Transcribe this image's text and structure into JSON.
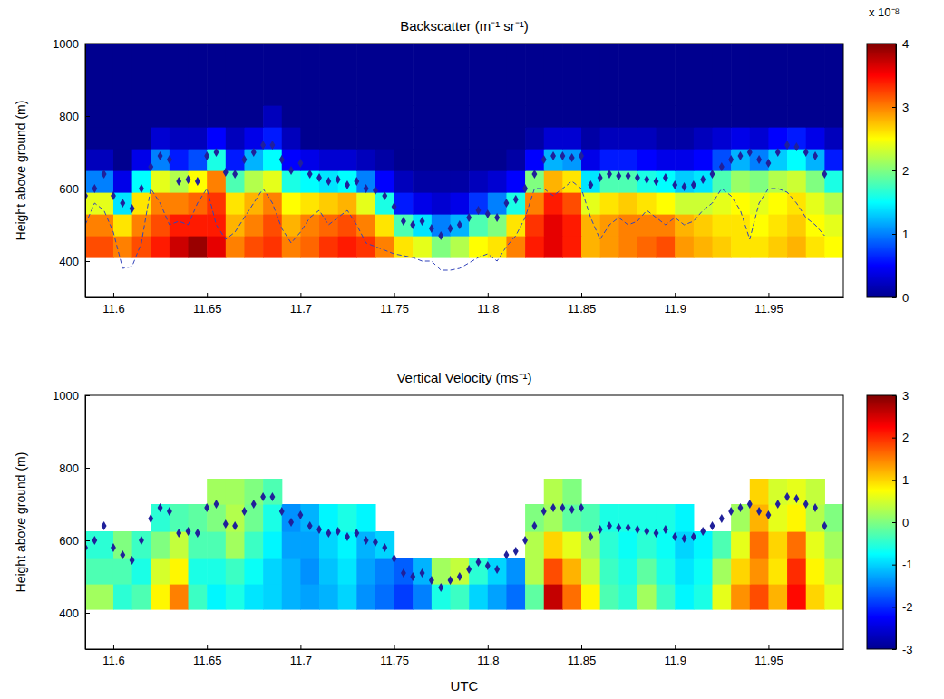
{
  "chart_data": [
    {
      "type": "heatmap",
      "title": "Backscatter (m⁻¹ sr⁻¹)",
      "ylabel": "Height above ground (m)",
      "xlim": [
        11.585,
        11.99
      ],
      "ylim": [
        300,
        1000
      ],
      "xticks": [
        11.6,
        11.65,
        11.7,
        11.75,
        11.8,
        11.85,
        11.9,
        11.95
      ],
      "yticks": [
        400,
        600,
        800,
        1000
      ],
      "x_edges": [
        11.585,
        11.6,
        11.61,
        11.62,
        11.63,
        11.64,
        11.65,
        11.66,
        11.67,
        11.68,
        11.69,
        11.7,
        11.71,
        11.72,
        11.73,
        11.74,
        11.75,
        11.76,
        11.77,
        11.78,
        11.79,
        11.8,
        11.81,
        11.82,
        11.83,
        11.84,
        11.85,
        11.86,
        11.87,
        11.88,
        11.89,
        11.9,
        11.91,
        11.92,
        11.93,
        11.94,
        11.95,
        11.96,
        11.97,
        11.98,
        11.99
      ],
      "y_edges": [
        410,
        470,
        530,
        590,
        650,
        710,
        770,
        830,
        1000
      ],
      "cells": [
        [
          3.2,
          3.0,
          3.2,
          3.4,
          3.7,
          3.9,
          3.6,
          3.0,
          3.2,
          3.3,
          3.0,
          3.1,
          3.3,
          3.4,
          3.3,
          3.0,
          2.6,
          2.4,
          2.0,
          2.2,
          2.5,
          2.6,
          3.0,
          3.4,
          3.6,
          3.4,
          2.8,
          2.9,
          3.0,
          3.1,
          3.2,
          2.9,
          2.8,
          2.7,
          2.6,
          2.6,
          2.7,
          2.8,
          2.6,
          2.5
        ],
        [
          3.0,
          2.6,
          3.0,
          3.2,
          3.4,
          3.4,
          3.4,
          2.8,
          3.0,
          3.2,
          2.8,
          3.0,
          3.1,
          3.2,
          3.0,
          2.6,
          1.8,
          1.4,
          1.0,
          1.2,
          1.8,
          2.0,
          2.6,
          3.3,
          3.6,
          3.4,
          2.8,
          2.9,
          3.0,
          3.0,
          3.0,
          2.8,
          2.7,
          2.6,
          2.6,
          2.5,
          2.6,
          2.7,
          2.5,
          2.4
        ],
        [
          2.4,
          1.4,
          2.6,
          3.0,
          3.0,
          3.1,
          3.3,
          2.6,
          2.8,
          3.0,
          2.5,
          2.6,
          2.7,
          2.8,
          2.4,
          1.6,
          0.6,
          0.4,
          0.3,
          0.4,
          0.7,
          1.0,
          1.6,
          3.0,
          3.4,
          3.2,
          2.4,
          2.6,
          2.7,
          2.6,
          2.5,
          2.3,
          2.3,
          2.4,
          2.5,
          2.4,
          2.5,
          2.6,
          2.4,
          2.2
        ],
        [
          1.0,
          0.4,
          1.5,
          2.4,
          2.2,
          2.5,
          3.0,
          1.8,
          2.2,
          2.4,
          1.6,
          1.5,
          1.4,
          1.5,
          1.0,
          0.5,
          0.2,
          0.1,
          0.1,
          0.1,
          0.2,
          0.3,
          0.5,
          2.0,
          2.8,
          2.6,
          1.4,
          1.8,
          1.8,
          1.6,
          1.5,
          1.3,
          1.4,
          1.8,
          2.1,
          2.0,
          2.2,
          2.3,
          2.0,
          1.6
        ],
        [
          0.2,
          0,
          0.4,
          1.0,
          0.6,
          0.8,
          1.6,
          0.6,
          1.2,
          1.5,
          0.5,
          0.4,
          0.3,
          0.3,
          0.2,
          0.1,
          0,
          0,
          0,
          0,
          0,
          0,
          0.1,
          0.5,
          1.2,
          1.1,
          0.4,
          0.6,
          0.6,
          0.5,
          0.4,
          0.4,
          0.5,
          0.8,
          1.2,
          1.0,
          1.3,
          1.5,
          1.2,
          0.6
        ],
        [
          0,
          0,
          0,
          0.3,
          0.2,
          0.2,
          0.5,
          0.2,
          0.4,
          0.6,
          0.2,
          0,
          0,
          0,
          0,
          0,
          0,
          0,
          0,
          0,
          0,
          0,
          0,
          0.1,
          0.3,
          0.3,
          0.1,
          0.2,
          0.2,
          0.2,
          0.1,
          0.1,
          0.2,
          0.3,
          0.4,
          0.3,
          0.5,
          0.6,
          0.4,
          0.2
        ],
        [
          0,
          0,
          0,
          0,
          0,
          0,
          0,
          0,
          0,
          0.2,
          0,
          0,
          0,
          0,
          0,
          0,
          0,
          0,
          0,
          0,
          0,
          0,
          0,
          0,
          0,
          0,
          0,
          0,
          0,
          0,
          0,
          0,
          0,
          0,
          0,
          0,
          0,
          0,
          0,
          0
        ],
        [
          0,
          0,
          0,
          0,
          0,
          0,
          0,
          0,
          0,
          0,
          0,
          0,
          0,
          0,
          0,
          0,
          0,
          0,
          0,
          0,
          0,
          0,
          0,
          0,
          0,
          0,
          0,
          0,
          0,
          0,
          0,
          0,
          0,
          0,
          0,
          0,
          0,
          0,
          0,
          0
        ]
      ],
      "clim": [
        0,
        4
      ],
      "cticks": [
        0,
        1,
        2,
        3,
        4
      ],
      "clabel": "x 10⁻⁸",
      "x": [
        11.585,
        11.59,
        11.595,
        11.6,
        11.605,
        11.61,
        11.615,
        11.62,
        11.625,
        11.63,
        11.635,
        11.64,
        11.645,
        11.65,
        11.655,
        11.66,
        11.665,
        11.67,
        11.675,
        11.68,
        11.685,
        11.69,
        11.695,
        11.7,
        11.705,
        11.71,
        11.715,
        11.72,
        11.725,
        11.73,
        11.735,
        11.74,
        11.745,
        11.75,
        11.755,
        11.76,
        11.765,
        11.77,
        11.775,
        11.78,
        11.785,
        11.79,
        11.795,
        11.8,
        11.805,
        11.81,
        11.815,
        11.82,
        11.825,
        11.83,
        11.835,
        11.84,
        11.845,
        11.85,
        11.855,
        11.86,
        11.865,
        11.87,
        11.875,
        11.88,
        11.885,
        11.89,
        11.895,
        11.9,
        11.905,
        11.91,
        11.915,
        11.92,
        11.925,
        11.93,
        11.935,
        11.94,
        11.945,
        11.95,
        11.955,
        11.96,
        11.965,
        11.97,
        11.975,
        11.98
      ],
      "series": [
        {
          "type": "scatter",
          "marker": "diamond",
          "color": "#20209a",
          "values": [
            580,
            600,
            640,
            580,
            560,
            545,
            600,
            660,
            690,
            680,
            620,
            625,
            620,
            690,
            700,
            645,
            640,
            680,
            700,
            720,
            720,
            680,
            650,
            670,
            640,
            630,
            620,
            625,
            610,
            620,
            600,
            595,
            580,
            550,
            510,
            500,
            510,
            490,
            470,
            490,
            500,
            520,
            540,
            530,
            520,
            560,
            570,
            600,
            640,
            680,
            690,
            690,
            685,
            690,
            610,
            630,
            640,
            635,
            635,
            630,
            625,
            620,
            630,
            610,
            605,
            610,
            625,
            640,
            660,
            680,
            690,
            700,
            680,
            670,
            700,
            720,
            715,
            700,
            690,
            640
          ]
        },
        {
          "type": "line",
          "line_style": "dashed",
          "color": "#3344bb",
          "values": [
            500,
            560,
            540,
            480,
            380,
            385,
            450,
            600,
            560,
            500,
            510,
            500,
            560,
            600,
            500,
            460,
            480,
            520,
            560,
            600,
            560,
            490,
            450,
            480,
            520,
            540,
            500,
            520,
            540,
            500,
            450,
            440,
            430,
            420,
            415,
            410,
            400,
            400,
            375,
            375,
            380,
            395,
            410,
            420,
            400,
            440,
            470,
            520,
            600,
            600,
            580,
            600,
            620,
            600,
            520,
            460,
            500,
            520,
            500,
            510,
            540,
            520,
            500,
            520,
            500,
            510,
            540,
            560,
            600,
            580,
            540,
            460,
            560,
            600,
            600,
            590,
            560,
            520,
            500,
            470
          ]
        }
      ]
    },
    {
      "type": "heatmap",
      "title": "Vertical Velocity (ms⁻¹)",
      "xlabel": "UTC",
      "ylabel": "Height above ground (m)",
      "xlim": [
        11.585,
        11.99
      ],
      "ylim": [
        300,
        1000
      ],
      "xticks": [
        11.6,
        11.65,
        11.7,
        11.75,
        11.8,
        11.85,
        11.9,
        11.95
      ],
      "yticks": [
        400,
        600,
        800,
        1000
      ],
      "x_edges": [
        11.585,
        11.6,
        11.61,
        11.62,
        11.63,
        11.64,
        11.65,
        11.66,
        11.67,
        11.68,
        11.69,
        11.7,
        11.71,
        11.72,
        11.73,
        11.74,
        11.75,
        11.76,
        11.77,
        11.78,
        11.79,
        11.8,
        11.81,
        11.82,
        11.83,
        11.84,
        11.85,
        11.86,
        11.87,
        11.88,
        11.89,
        11.9,
        11.91,
        11.92,
        11.93,
        11.94,
        11.95,
        11.96,
        11.97,
        11.98,
        11.99
      ],
      "y_edges": [
        410,
        480,
        550,
        625,
        700,
        770
      ],
      "cells": [
        [
          0.2,
          -0.5,
          -0.3,
          0.8,
          1.5,
          -0.4,
          -0.8,
          -0.6,
          -0.9,
          -1.0,
          -1.2,
          -1.3,
          -1.2,
          -1.0,
          -1.4,
          -1.6,
          -1.9,
          -1.5,
          -0.6,
          -0.4,
          -1.0,
          -1.3,
          -1.6,
          -0.2,
          2.6,
          1.6,
          0.8,
          -0.3,
          -0.5,
          0.2,
          -0.4,
          -0.8,
          -0.6,
          0.6,
          1.4,
          1.8,
          1.2,
          2.2,
          1.0,
          0.6
        ],
        [
          -0.3,
          -0.3,
          -0.6,
          0.5,
          0.8,
          -0.6,
          -0.6,
          -0.4,
          -0.7,
          -1.0,
          -1.2,
          -1.4,
          -1.1,
          -0.9,
          -1.3,
          -1.5,
          -1.7,
          -1.2,
          0.2,
          0.4,
          -0.5,
          -1.0,
          -1.4,
          0.3,
          1.8,
          1.2,
          0.4,
          -0.4,
          -0.6,
          -0.2,
          -0.6,
          -0.9,
          -0.7,
          0.2,
          1.0,
          1.4,
          0.9,
          2.0,
          0.8,
          0.4
        ],
        [
          -0.5,
          0,
          -0.4,
          0,
          0.4,
          -0.3,
          -0.3,
          0.2,
          -0.4,
          -0.8,
          -1.3,
          -1.3,
          -1.0,
          -0.8,
          -1.2,
          -1.0,
          null,
          null,
          null,
          null,
          null,
          null,
          null,
          0.3,
          1.0,
          0.6,
          0.2,
          -0.5,
          -0.7,
          -0.5,
          -0.7,
          -1.0,
          -0.8,
          -0.3,
          0.6,
          1.6,
          1.0,
          1.6,
          0.6,
          0.2
        ],
        [
          null,
          null,
          null,
          -0.5,
          -0.3,
          -0.2,
          0,
          0.3,
          -0.1,
          -0.6,
          -1.4,
          -1.2,
          -0.8,
          -0.6,
          -0.8,
          null,
          null,
          null,
          null,
          null,
          null,
          null,
          null,
          0.0,
          0.2,
          -0.2,
          -0.3,
          -0.6,
          -0.6,
          -0.6,
          -0.6,
          -0.8,
          null,
          null,
          0.2,
          1.2,
          0.6,
          0.8,
          0.3,
          0.0
        ],
        [
          null,
          null,
          null,
          null,
          null,
          null,
          0.2,
          0.2,
          0,
          -0.3,
          null,
          null,
          null,
          null,
          null,
          null,
          null,
          null,
          null,
          null,
          null,
          null,
          null,
          null,
          0.3,
          0,
          null,
          null,
          null,
          null,
          null,
          null,
          null,
          null,
          null,
          1.0,
          0.5,
          0.6,
          0.4,
          null
        ]
      ],
      "clim": [
        -3,
        3
      ],
      "cticks": [
        -3,
        -2,
        -1,
        0,
        1,
        2,
        3
      ],
      "x": [
        11.585,
        11.59,
        11.595,
        11.6,
        11.605,
        11.61,
        11.615,
        11.62,
        11.625,
        11.63,
        11.635,
        11.64,
        11.645,
        11.65,
        11.655,
        11.66,
        11.665,
        11.67,
        11.675,
        11.68,
        11.685,
        11.69,
        11.695,
        11.7,
        11.705,
        11.71,
        11.715,
        11.72,
        11.725,
        11.73,
        11.735,
        11.74,
        11.745,
        11.75,
        11.755,
        11.76,
        11.765,
        11.77,
        11.775,
        11.78,
        11.785,
        11.79,
        11.795,
        11.8,
        11.805,
        11.81,
        11.815,
        11.82,
        11.825,
        11.83,
        11.835,
        11.84,
        11.845,
        11.85,
        11.855,
        11.86,
        11.865,
        11.87,
        11.875,
        11.88,
        11.885,
        11.89,
        11.895,
        11.9,
        11.905,
        11.91,
        11.915,
        11.92,
        11.925,
        11.93,
        11.935,
        11.94,
        11.945,
        11.95,
        11.955,
        11.96,
        11.965,
        11.97,
        11.975,
        11.98
      ],
      "series": [
        {
          "type": "scatter",
          "marker": "diamond",
          "color": "#20209a",
          "values": [
            580,
            600,
            640,
            580,
            560,
            545,
            600,
            660,
            690,
            680,
            620,
            625,
            620,
            690,
            700,
            645,
            640,
            680,
            700,
            720,
            720,
            680,
            650,
            670,
            640,
            630,
            620,
            625,
            610,
            620,
            600,
            595,
            580,
            550,
            510,
            500,
            510,
            490,
            470,
            490,
            500,
            520,
            540,
            530,
            520,
            560,
            570,
            600,
            640,
            680,
            690,
            690,
            685,
            690,
            610,
            630,
            640,
            635,
            635,
            630,
            625,
            620,
            630,
            610,
            605,
            610,
            625,
            640,
            660,
            680,
            690,
            700,
            680,
            670,
            700,
            720,
            715,
            700,
            690,
            640
          ]
        }
      ]
    }
  ]
}
